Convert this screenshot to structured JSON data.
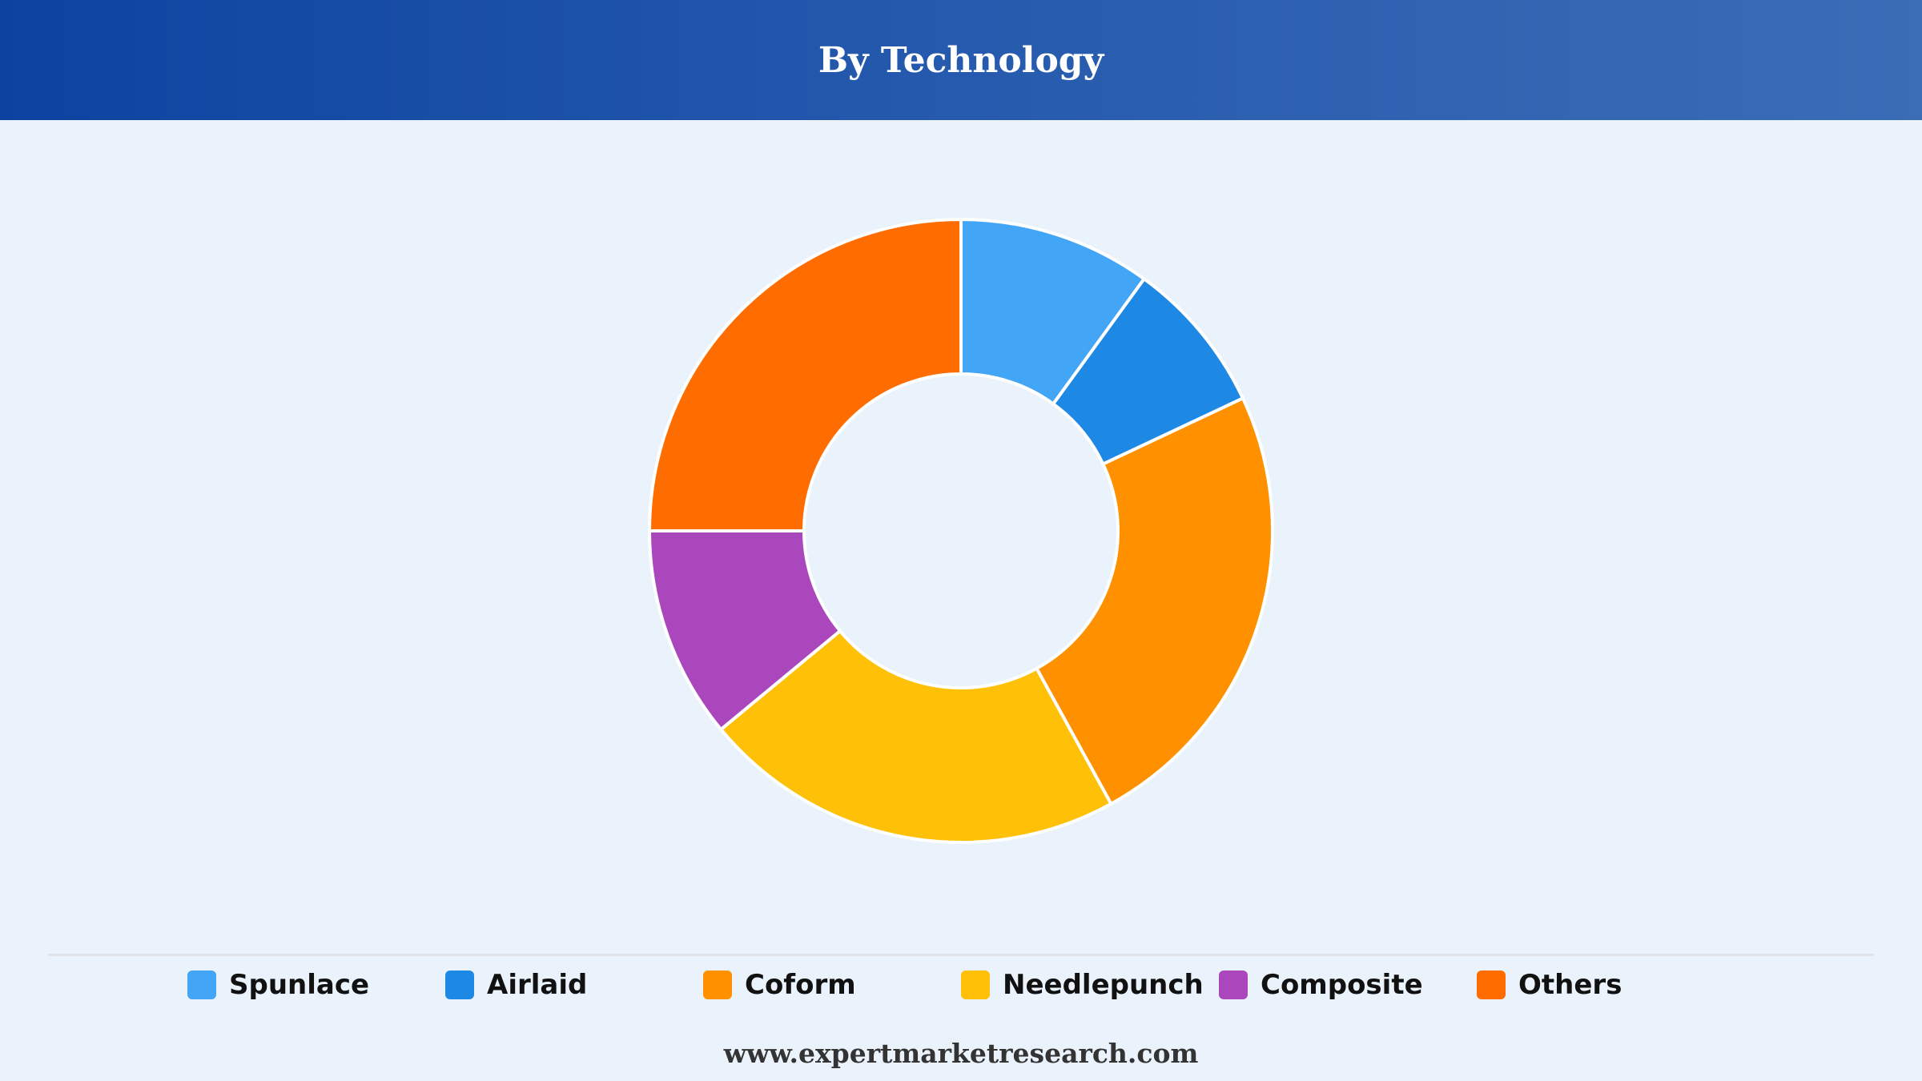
{
  "header": {
    "title": "By Technology"
  },
  "footer": {
    "url": "www.expertmarketresearch.com"
  },
  "chart_data": {
    "type": "pie",
    "subtype": "donut",
    "title": "By Technology",
    "unit": "%",
    "categories": [
      "Spunlace",
      "Airlaid",
      "Coform",
      "Needlepunch",
      "Composite",
      "Others"
    ],
    "values": [
      10,
      8,
      24,
      22,
      11,
      25
    ],
    "colors": [
      "#42a5f5",
      "#1e88e5",
      "#ff9100",
      "#ffc107",
      "#ab47bc",
      "#ff6d00"
    ],
    "legend": {
      "placement": "bottom",
      "entries": [
        "Spunlace",
        "Airlaid",
        "Coform",
        "Needlepunch",
        "Composite",
        "Others"
      ]
    },
    "start_angle_deg": 0,
    "direction": "clockwise"
  }
}
